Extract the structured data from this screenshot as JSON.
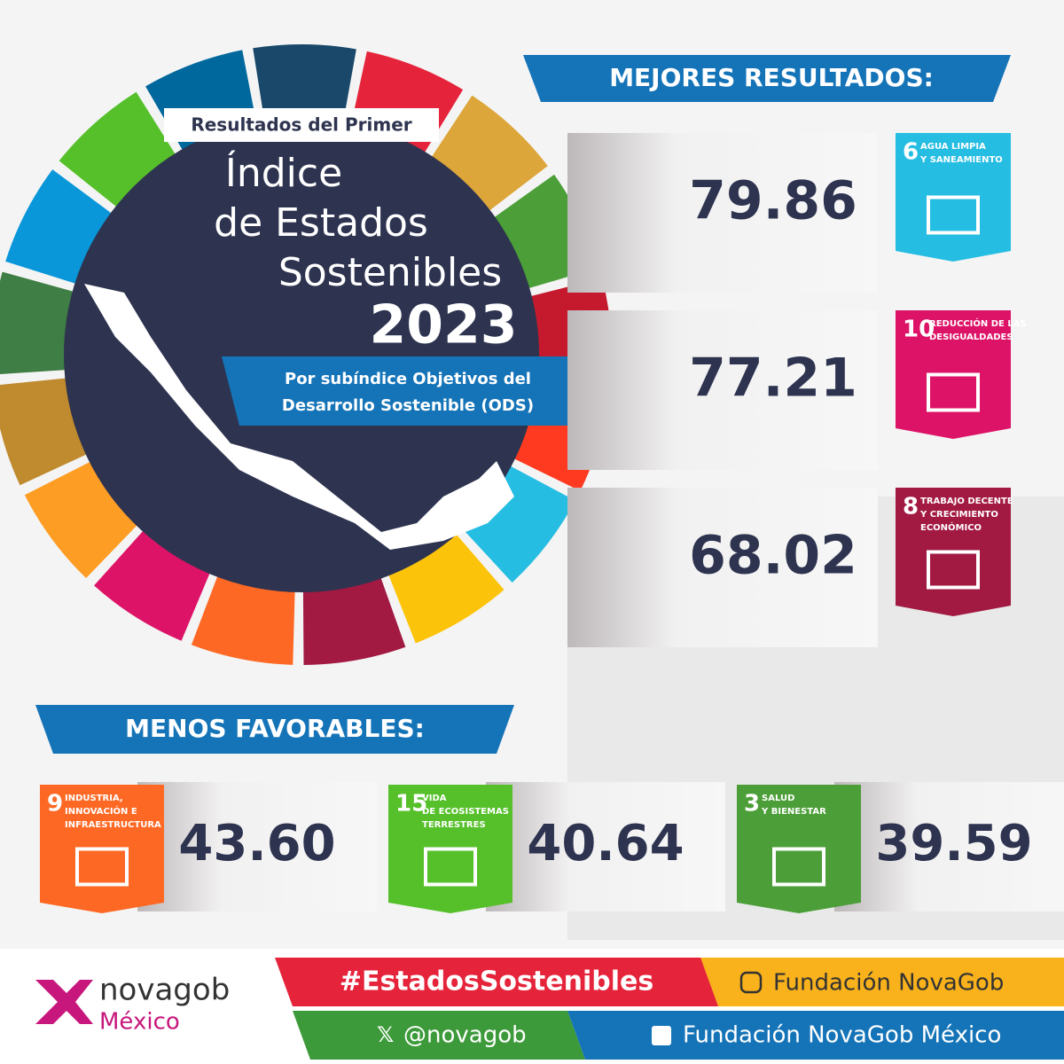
{
  "wheel": {
    "kicker": "Resultados del Primer",
    "title_lines": [
      "Índice",
      "de Estados",
      "Sostenibles"
    ],
    "year": "2023",
    "subtitle_lines": [
      "Por subíndice Objetivos del",
      "Desarrollo Sostenible (ODS)"
    ]
  },
  "best": {
    "heading": "MEJORES RESULTADOS:",
    "items": [
      {
        "score": "79.86",
        "goal": 6,
        "goal_lines": [
          "AGUA LIMPIA",
          "Y SANEAMIENTO"
        ]
      },
      {
        "score": "77.21",
        "goal": 10,
        "goal_lines": [
          "REDUCCIÓN DE LAS",
          "DESIGUALDADES"
        ]
      },
      {
        "score": "68.02",
        "goal": 8,
        "goal_lines": [
          "TRABAJO DECENTE",
          "Y CRECIMIENTO",
          "ECONÓMICO"
        ]
      }
    ]
  },
  "worst": {
    "heading": "MENOS FAVORABLES:",
    "items": [
      {
        "score": "43.60",
        "goal": 9,
        "goal_lines": [
          "INDUSTRIA,",
          "INNOVACIÓN E",
          "INFRAESTRUCTURA"
        ]
      },
      {
        "score": "40.64",
        "goal": 15,
        "goal_lines": [
          "VIDA",
          "DE ECOSISTEMAS",
          "TERRESTRES"
        ]
      },
      {
        "score": "39.59",
        "goal": 3,
        "goal_lines": [
          "SALUD",
          "Y BIENESTAR"
        ]
      }
    ]
  },
  "footer": {
    "brand": "novagob",
    "country": "México",
    "hashtag": "#EstadosSostenibles",
    "instagram": "Fundación NovaGob",
    "x": "@novagob",
    "facebook": "Fundación NovaGob México"
  }
}
